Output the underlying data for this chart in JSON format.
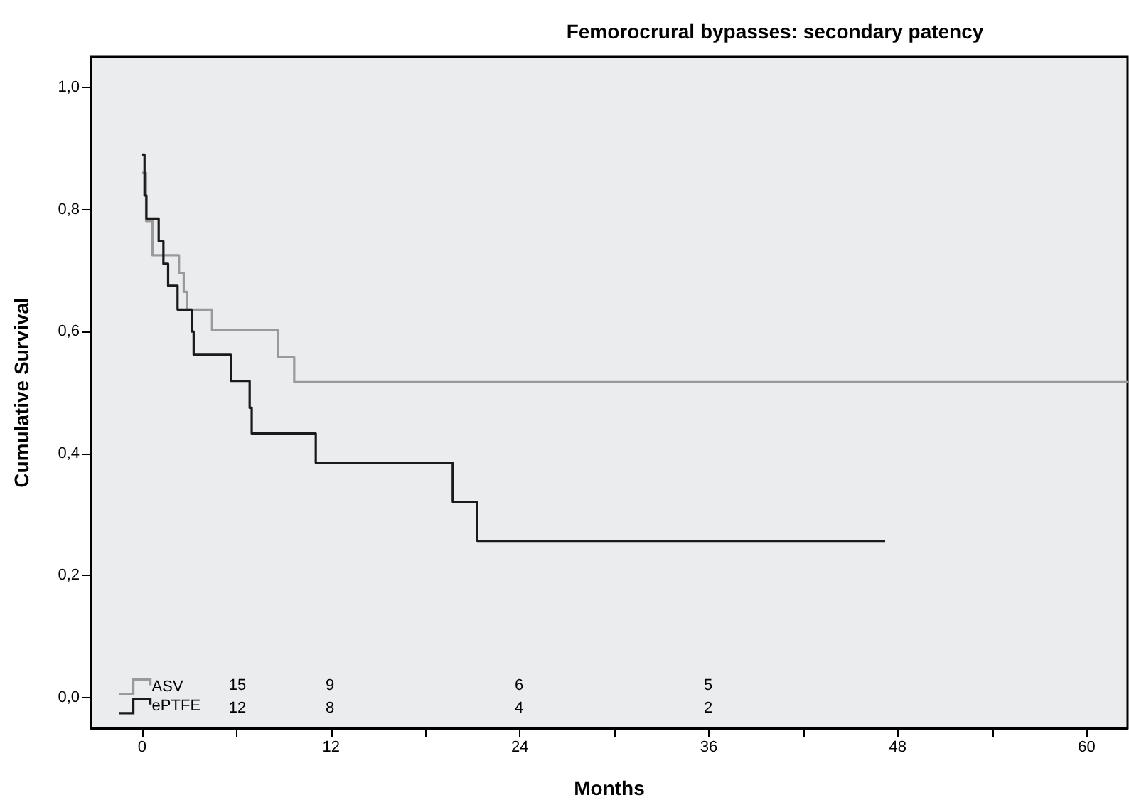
{
  "chart_data": {
    "type": "step",
    "title": "Femorocrural bypasses: secondary patency",
    "xlabel": "Months",
    "ylabel": "Cumulative Survival",
    "series": [
      {
        "name": "ASV",
        "color": "#9a9a9a",
        "x": [
          0,
          0.25,
          0.66,
          2.34,
          2.64,
          2.85,
          4.44,
          8.63,
          9.66,
          62.6
        ],
        "values": [
          0.86,
          0.781,
          0.725,
          0.696,
          0.665,
          0.636,
          0.602,
          0.558,
          0.517,
          0.517
        ]
      },
      {
        "name": "ePTFE",
        "color": "#1a1a1a",
        "x": [
          0,
          0.15,
          0.27,
          1.05,
          1.35,
          1.65,
          2.25,
          3.15,
          3.27,
          5.64,
          6.83,
          6.96,
          11.03,
          19.73,
          21.29,
          47.2
        ],
        "values": [
          0.89,
          0.823,
          0.785,
          0.748,
          0.711,
          0.675,
          0.636,
          0.6,
          0.562,
          0.519,
          0.475,
          0.433,
          0.385,
          0.321,
          0.257,
          0.257
        ]
      }
    ],
    "xlim": [
      -3.25,
      62.6
    ],
    "ylim": [
      -0.05,
      1.05
    ],
    "xticks": [
      0,
      {
        "value": 6,
        "label": null
      },
      12,
      {
        "value": 18,
        "label": null
      },
      24,
      {
        "value": 30,
        "label": null
      },
      36,
      {
        "value": 42,
        "label": null
      },
      48,
      {
        "value": 54,
        "label": null
      },
      60
    ],
    "yticks": [
      {
        "value": 0,
        "label": "0,0"
      },
      {
        "value": 0.2,
        "label": "0,2"
      },
      {
        "value": 0.4,
        "label": "0,4"
      },
      {
        "value": 0.6,
        "label": "0,6"
      },
      {
        "value": 0.8,
        "label": "0,8"
      },
      {
        "value": 1,
        "label": "1,0"
      }
    ],
    "annotations": [
      "15",
      "9",
      "6",
      "5",
      "12",
      "8",
      "4",
      "2"
    ],
    "legend": "bottom left",
    "grid": false,
    "marker": "none",
    "line_style": "solid"
  }
}
